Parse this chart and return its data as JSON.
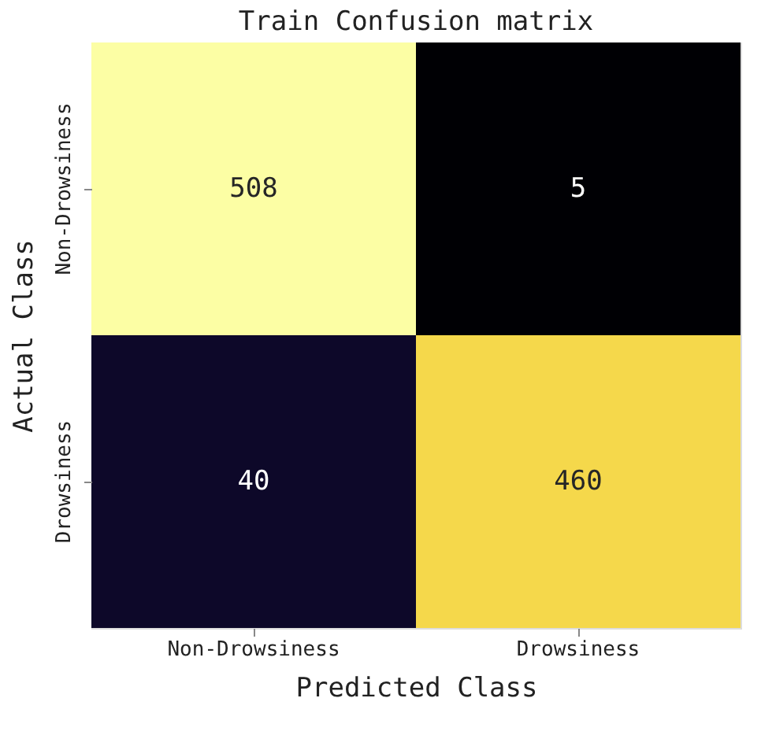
{
  "chart_data": {
    "type": "heatmap",
    "title": "Train Confusion matrix",
    "xlabel": "Predicted Class",
    "ylabel": "Actual Class",
    "categories": [
      "Non-Drowsiness",
      "Drowsiness"
    ],
    "y_categories": [
      "Non-Drowsiness",
      "Drowsiness"
    ],
    "cells": [
      [
        508,
        5
      ],
      [
        40,
        460
      ]
    ],
    "colors": [
      "#fcfea4",
      "#000004",
      "#0d0829",
      "#f5d84b"
    ],
    "data_labels": true,
    "legend": false,
    "grid": false
  }
}
